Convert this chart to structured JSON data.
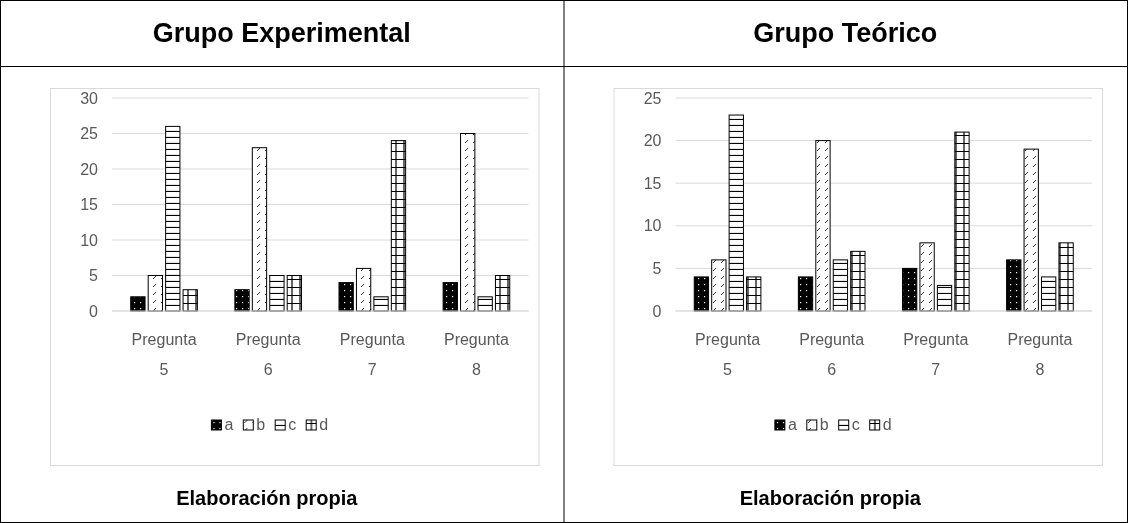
{
  "chart_data": [
    {
      "type": "bar",
      "title": "Grupo Experimental",
      "categories": [
        "Pregunta 5",
        "Pregunta 6",
        "Pregunta 7",
        "Pregunta 8"
      ],
      "series": [
        {
          "name": "a",
          "color": "#000000",
          "values": [
            2,
            3,
            4,
            4
          ]
        },
        {
          "name": "b",
          "color": "#000000",
          "values": [
            5,
            23,
            6,
            25
          ]
        },
        {
          "name": "c",
          "color": "#000000",
          "values": [
            26,
            5,
            2,
            2
          ]
        },
        {
          "name": "d",
          "color": "#000000",
          "values": [
            3,
            5,
            24,
            5
          ]
        }
      ],
      "ylim": [
        0,
        30
      ],
      "yticks": [
        0,
        5,
        10,
        15,
        20,
        25,
        30
      ],
      "grid": "y",
      "legend": "bottom",
      "annotations": [
        "Elaboración propia"
      ]
    },
    {
      "type": "bar",
      "title": "Grupo Teórico",
      "categories": [
        "Pregunta 5",
        "Pregunta 6",
        "Pregunta 7",
        "Pregunta 8"
      ],
      "series": [
        {
          "name": "a",
          "color": "#000000",
          "values": [
            4,
            4,
            5,
            6
          ]
        },
        {
          "name": "b",
          "color": "#000000",
          "values": [
            6,
            20,
            8,
            19
          ]
        },
        {
          "name": "c",
          "color": "#000000",
          "values": [
            23,
            6,
            3,
            4
          ]
        },
        {
          "name": "d",
          "color": "#000000",
          "values": [
            4,
            7,
            21,
            8
          ]
        }
      ],
      "ylim": [
        0,
        25
      ],
      "yticks": [
        0,
        5,
        10,
        15,
        20,
        25
      ],
      "grid": "y",
      "legend": "bottom",
      "annotations": [
        "Elaboración propia"
      ]
    }
  ]
}
